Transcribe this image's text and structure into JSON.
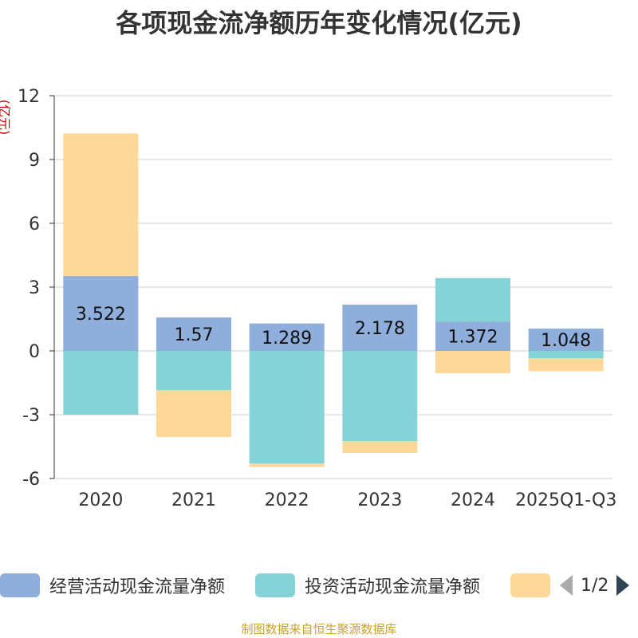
{
  "chart_data": {
    "type": "bar",
    "stacked": true,
    "title": "各项现金流净额历年变化情况(亿元)",
    "ylabel": "(亿元)",
    "xlabel": "",
    "categories": [
      "2020",
      "2021",
      "2022",
      "2023",
      "2024",
      "2025Q1-Q3"
    ],
    "ylim": [
      -6,
      12
    ],
    "yticks": [
      -6,
      -3,
      0,
      3,
      6,
      9,
      12
    ],
    "grid": true,
    "series": [
      {
        "name": "经营活动现金流量净额",
        "color": "#8faedc",
        "values": [
          3.522,
          1.57,
          1.289,
          2.178,
          1.372,
          1.048
        ],
        "labels": [
          "3.522",
          "1.57",
          "1.289",
          "2.178",
          "1.372",
          "1.048"
        ]
      },
      {
        "name": "投资活动现金流量净额",
        "color": "#85d3d6",
        "values": [
          -3.0,
          -1.85,
          -5.3,
          -4.25,
          2.05,
          -0.35
        ]
      },
      {
        "name": "",
        "color": "#fed899",
        "values": [
          6.7,
          -2.2,
          -0.15,
          -0.55,
          -1.05,
          -0.6
        ]
      }
    ]
  },
  "legend": {
    "items": [
      {
        "label": "经营活动现金流量净额",
        "color": "#8faedc"
      },
      {
        "label": "投资活动现金流量净额",
        "color": "#85d3d6"
      },
      {
        "label": "",
        "color": "#fed899"
      }
    ],
    "page": "1/2"
  },
  "source": "制图数据来自恒生聚源数据库"
}
